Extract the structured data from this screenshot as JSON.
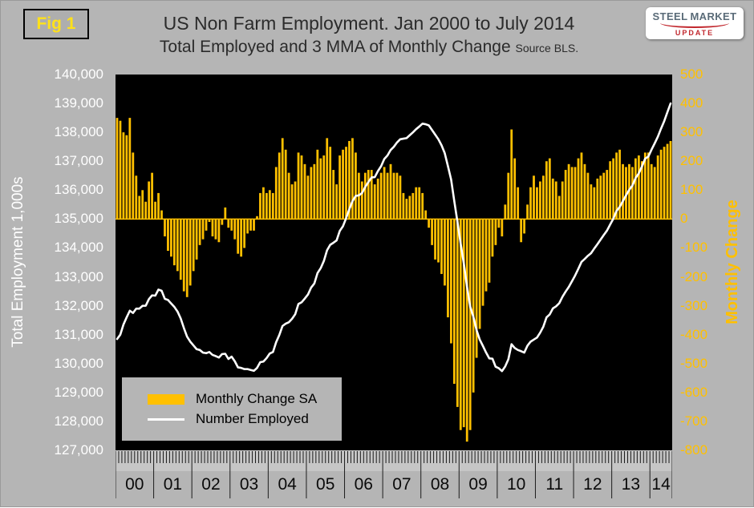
{
  "fig_label": "Fig 1",
  "logo": {
    "word1": "STEEL",
    "word2": "MARKET",
    "word3": "UPDATE"
  },
  "colors": {
    "page_bg": "#B5B5B5",
    "plot_bg": "#000000",
    "gold": "#FFC000",
    "line_white": "#FFFFFF",
    "left_axis_text": "#FFFFFF",
    "right_axis_text": "#FFC000",
    "title_text": "#2B2B2B",
    "fig_label_text": "#FFE11A",
    "logo_steel": "#5A6B78",
    "logo_red": "#C1272D"
  },
  "chart_data": {
    "type": "bar+line combo, monthly series Jan 2000 - Jul 2014 (175 points)",
    "title": "US Non Farm Employment. Jan 2000 to July 2014",
    "subtitle": "Total Employed and 3 MMA of Monthly Change",
    "source": "Source BLS.",
    "grid": "off",
    "legend_position": "inside bottom-left",
    "x_years": [
      "00",
      "01",
      "02",
      "03",
      "04",
      "05",
      "06",
      "07",
      "08",
      "09",
      "10",
      "11",
      "12",
      "13",
      "14"
    ],
    "left_axis": {
      "title": "Total Employment 1,000s",
      "min": 127000,
      "max": 140000,
      "step": 1000,
      "ticks": [
        "140,000",
        "139,000",
        "138,000",
        "137,000",
        "136,000",
        "135,000",
        "134,000",
        "133,000",
        "132,000",
        "131,000",
        "130,000",
        "129,000",
        "128,000",
        "127,000"
      ]
    },
    "right_axis": {
      "title": "Monthly Change",
      "min": -800,
      "max": 500,
      "step": 100,
      "ticks": [
        "500",
        "400",
        "300",
        "200",
        "100",
        "0",
        "-100",
        "-200",
        "-300",
        "-400",
        "-500",
        "-600",
        "-700",
        "-800"
      ]
    },
    "legend": [
      {
        "label": "Monthly Change SA",
        "type": "bar",
        "color": "#FFC000"
      },
      {
        "label": "Number Employed",
        "type": "line",
        "color": "#FFFFFF"
      }
    ],
    "series": [
      {
        "name": "Monthly Change SA",
        "axis": "right",
        "type": "bar",
        "values": [
          350,
          340,
          300,
          290,
          350,
          230,
          150,
          80,
          100,
          60,
          130,
          160,
          60,
          90,
          30,
          -60,
          -110,
          -130,
          -160,
          -180,
          -210,
          -250,
          -270,
          -230,
          -180,
          -140,
          -90,
          -70,
          -40,
          -10,
          -60,
          -70,
          -80,
          -20,
          40,
          -30,
          -40,
          -70,
          -120,
          -130,
          -100,
          -50,
          -40,
          -40,
          10,
          90,
          110,
          90,
          100,
          90,
          180,
          230,
          280,
          240,
          160,
          120,
          130,
          230,
          220,
          190,
          150,
          180,
          190,
          240,
          210,
          220,
          280,
          250,
          170,
          120,
          220,
          240,
          250,
          270,
          280,
          230,
          160,
          130,
          160,
          170,
          170,
          120,
          140,
          160,
          180,
          160,
          190,
          160,
          160,
          150,
          90,
          70,
          80,
          90,
          110,
          110,
          90,
          30,
          -30,
          -90,
          -140,
          -150,
          -190,
          -230,
          -340,
          -430,
          -570,
          -650,
          -730,
          -720,
          -770,
          -730,
          -600,
          -480,
          -380,
          -300,
          -250,
          -220,
          -130,
          -90,
          -30,
          -60,
          50,
          160,
          310,
          210,
          110,
          -80,
          -50,
          50,
          110,
          150,
          110,
          130,
          150,
          200,
          210,
          140,
          130,
          80,
          130,
          170,
          190,
          180,
          180,
          210,
          230,
          190,
          160,
          120,
          110,
          140,
          150,
          160,
          170,
          200,
          210,
          230,
          240,
          190,
          180,
          190,
          180,
          210,
          220,
          200,
          230,
          230,
          190,
          180,
          220,
          240,
          250,
          260,
          270
        ]
      },
      {
        "name": "Number Employed",
        "axis": "left",
        "type": "line",
        "values": [
          130850,
          131000,
          131350,
          131600,
          131830,
          131750,
          131900,
          131900,
          132000,
          132000,
          132230,
          132360,
          132350,
          132560,
          132520,
          132240,
          132200,
          132080,
          131960,
          131800,
          131560,
          131230,
          130930,
          130760,
          130630,
          130500,
          130470,
          130380,
          130360,
          130400,
          130300,
          130260,
          130210,
          130330,
          130340,
          130160,
          130240,
          130080,
          129870,
          129850,
          129810,
          129810,
          129780,
          129750,
          129850,
          130050,
          130070,
          130190,
          130350,
          130400,
          130740,
          130990,
          131300,
          131380,
          131430,
          131550,
          131710,
          132060,
          132120,
          132250,
          132390,
          132630,
          132770,
          133130,
          133300,
          133550,
          133920,
          134110,
          134180,
          134260,
          134590,
          134750,
          135030,
          135340,
          135620,
          135800,
          135820,
          135900,
          136110,
          136280,
          136440,
          136450,
          136660,
          136830,
          137080,
          137200,
          137390,
          137500,
          137650,
          137760,
          137780,
          137800,
          137900,
          138000,
          138110,
          138200,
          138300,
          138280,
          138240,
          138080,
          137920,
          137760,
          137550,
          137280,
          136830,
          136370,
          135620,
          134900,
          134150,
          133460,
          132660,
          131970,
          131620,
          131160,
          130830,
          130610,
          130380,
          130180,
          130170,
          129890,
          129840,
          129740,
          129900,
          130150,
          130670,
          130540,
          130470,
          130430,
          130380,
          130620,
          130760,
          130830,
          130900,
          131070,
          131280,
          131600,
          131700,
          131910,
          131980,
          132090,
          132310,
          132490,
          132650,
          132850,
          133050,
          133280,
          133520,
          133620,
          133730,
          133820,
          133980,
          134130,
          134290,
          134450,
          134600,
          134810,
          135010,
          135280,
          135420,
          135620,
          135820,
          136010,
          136160,
          136420,
          136580,
          136820,
          137090,
          137160,
          137400,
          137620,
          137850,
          138130,
          138390,
          138700,
          139000
        ]
      }
    ]
  }
}
